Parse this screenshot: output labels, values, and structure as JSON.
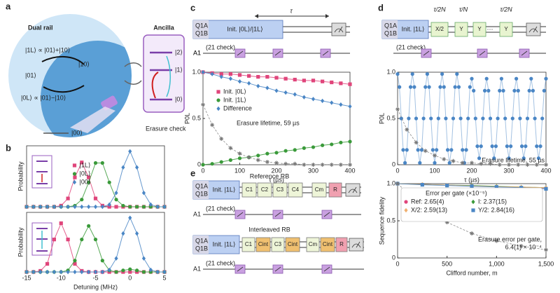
{
  "panel_labels": [
    "a",
    "b",
    "c",
    "d",
    "e"
  ],
  "panel_a": {
    "dual_rail": "Dual rail",
    "ancilla": "Ancilla",
    "state_1L": "|1L⟩ ∝ |01⟩+|10⟩",
    "state_10": "|10⟩",
    "state_01": "|01⟩",
    "state_0L": "|0L⟩ ∝ |01⟩−|10⟩",
    "anc_2": "|2⟩",
    "anc_1": "|1⟩",
    "anc_0": "|0⟩",
    "state_00": "|00⟩",
    "erasure_check": "Erasure check"
  },
  "circuit_c": {
    "q1a": "Q1A",
    "q1b": "Q1B",
    "a1": "A1",
    "init": "Init. |0L⟩/|1L⟩",
    "tau": "τ",
    "check": "(21 check)"
  },
  "circuit_d": {
    "q1a": "Q1A",
    "q1b": "Q1B",
    "a1": "A1",
    "init": "Init. |1L⟩",
    "gates": [
      "X/2",
      "Y",
      "Y",
      "Y"
    ],
    "timings": [
      "τ/2N",
      "τ/N",
      "τ/2N"
    ],
    "check": "(21 check)"
  },
  "circuit_e": {
    "q1a": "Q1A",
    "q1b": "Q1B",
    "a1": "A1",
    "reference": {
      "title": "Reference RB",
      "init": "Init. |1L⟩",
      "gates": [
        "C1",
        "C2",
        "C3",
        "C4",
        "Cm",
        "R"
      ],
      "check": "(21 check)"
    },
    "interleaved": {
      "title": "Interleaved RB",
      "init": "Init. |1L⟩",
      "gates": [
        "C1",
        "Cint",
        "C3",
        "Cint",
        "Cm",
        "Cint",
        "R"
      ],
      "check": "(21 check)"
    }
  },
  "chart_data": [
    {
      "type": "line",
      "ylabel": "Probability",
      "xlim": [
        -15,
        5
      ],
      "ylim": [
        0,
        1.1
      ],
      "legend": "upper center",
      "x": [
        -15,
        -14,
        -13,
        -12,
        -11,
        -10,
        -9,
        -8,
        -7,
        -6,
        -5,
        -4,
        -3,
        -2,
        -1,
        0,
        1,
        2,
        3,
        4,
        5
      ],
      "series": [
        {
          "name": "|1L⟩",
          "color": "#e0457b",
          "marker": "square",
          "values": [
            0,
            0,
            0,
            0,
            0,
            0.02,
            0.15,
            0.53,
            0.8,
            0.53,
            0.15,
            0.02,
            0,
            0,
            0,
            0,
            0,
            0,
            0,
            0,
            0
          ]
        },
        {
          "name": "|0L⟩",
          "color": "#3a9a3a",
          "marker": "circle",
          "values": [
            0,
            0,
            0,
            0,
            0,
            0,
            0,
            0.02,
            0.13,
            0.44,
            0.79,
            0.79,
            0.44,
            0.13,
            0.02,
            0,
            0,
            0,
            0,
            0,
            0
          ]
        },
        {
          "name": "|00⟩",
          "color": "#4a86c5",
          "marker": "diamond",
          "values": [
            0,
            0,
            0,
            0,
            0,
            0,
            0,
            0,
            0,
            0,
            0,
            0,
            0.04,
            0.25,
            0.71,
            1.0,
            0.71,
            0.25,
            0.04,
            0,
            0
          ]
        }
      ]
    },
    {
      "type": "line",
      "ylabel": "Probability",
      "xlabel": "Detuning (MHz)",
      "xlim": [
        -15,
        5
      ],
      "ylim": [
        0,
        1.1
      ],
      "xticks": [
        -15,
        -10,
        -5,
        0,
        5
      ],
      "x": [
        -15,
        -14,
        -13,
        -12,
        -11,
        -10,
        -9,
        -8,
        -7,
        -6,
        -5,
        -4,
        -3,
        -2,
        -1,
        0,
        1,
        2,
        3,
        4,
        5
      ],
      "series": [
        {
          "color": "#e0457b",
          "marker": "square",
          "values": [
            0,
            0,
            0.02,
            0.15,
            0.6,
            0.9,
            0.6,
            0.15,
            0.02,
            0,
            0,
            0,
            0,
            0,
            0,
            0,
            0,
            0,
            0,
            0,
            0
          ]
        },
        {
          "color": "#3a9a3a",
          "marker": "circle",
          "values": [
            0,
            0,
            0,
            0,
            0,
            0,
            0.03,
            0.21,
            0.6,
            0.85,
            0.6,
            0.21,
            0.03,
            0,
            0.03,
            0.05,
            0.03,
            0,
            0,
            0,
            0
          ]
        },
        {
          "color": "#4a86c5",
          "marker": "diamond",
          "values": [
            0,
            0,
            0,
            0,
            0,
            0,
            0,
            0,
            0,
            0,
            0,
            0,
            0.04,
            0.25,
            0.71,
            1.0,
            0.71,
            0.25,
            0.04,
            0,
            0
          ]
        }
      ]
    },
    {
      "type": "line",
      "ylabel": "P0L",
      "xlabel": "τ (µs)",
      "xlim": [
        0,
        400
      ],
      "ylim": [
        0,
        1
      ],
      "xticks": [
        0,
        100,
        200,
        300,
        400
      ],
      "yticks": [
        0,
        0.5,
        {
          "value": 1,
          "label": "1.0"
        }
      ],
      "legend": "center left",
      "x": [
        0,
        25,
        50,
        75,
        100,
        125,
        150,
        175,
        200,
        225,
        250,
        275,
        300,
        325,
        350,
        375,
        400
      ],
      "annotations": [
        "Erasure lifetime, 59 µs"
      ],
      "series": [
        {
          "name": "Init. |0L⟩",
          "color": "#e0457b",
          "marker": "square",
          "values": [
            1.0,
            0.99,
            0.98,
            0.98,
            0.97,
            0.96,
            0.95,
            0.95,
            0.94,
            0.93,
            0.92,
            0.91,
            0.91,
            0.9,
            0.89,
            0.88,
            0.87
          ]
        },
        {
          "name": "Init. |1L⟩",
          "color": "#3a9a3a",
          "marker": "circle",
          "values": [
            0,
            0.01,
            0.03,
            0.05,
            0.07,
            0.08,
            0.1,
            0.12,
            0.13,
            0.15,
            0.16,
            0.18,
            0.19,
            0.21,
            0.22,
            0.24,
            0.25
          ]
        },
        {
          "name": "Difference",
          "color": "#4a86c5",
          "marker": "diamond",
          "values": [
            1.0,
            0.98,
            0.95,
            0.93,
            0.9,
            0.88,
            0.85,
            0.83,
            0.8,
            0.78,
            0.76,
            0.73,
            0.71,
            0.69,
            0.67,
            0.65,
            0.63
          ]
        },
        {
          "color": "#777777",
          "marker": "star",
          "values": [
            0.65,
            0.43,
            0.28,
            0.18,
            0.12,
            0.08,
            0.05,
            0.03,
            0.02,
            0.01,
            0.01,
            0,
            0,
            0,
            0,
            0,
            0
          ]
        }
      ]
    },
    {
      "type": "line",
      "ylabel": "P0L",
      "xlabel": "τ (µs)",
      "xlim": [
        0,
        400
      ],
      "ylim": [
        0,
        1
      ],
      "xticks": [
        0,
        100,
        200,
        300,
        400
      ],
      "yticks": [
        0,
        0.5,
        {
          "value": 1,
          "label": "1.0"
        }
      ],
      "x": [
        0,
        5,
        10,
        15,
        20,
        25,
        30,
        35,
        40,
        45,
        50,
        55,
        60,
        65,
        70,
        75,
        80,
        85,
        90,
        95,
        100,
        105,
        110,
        115,
        120,
        125,
        130,
        135,
        140,
        145,
        150,
        155,
        160,
        165,
        170,
        175,
        180,
        185,
        190,
        195,
        200,
        205,
        210,
        215,
        220,
        225,
        230,
        235,
        240,
        245,
        250,
        255,
        260,
        265,
        270,
        275,
        280,
        285,
        290,
        295,
        300,
        305,
        310,
        315,
        320,
        325,
        330,
        335,
        340,
        345,
        350,
        355,
        360,
        365,
        370,
        375,
        380,
        385,
        390,
        395,
        400
      ],
      "annotations": [
        "Erasure lifetime, 55 µs"
      ],
      "series": [
        {
          "color": "#4a86c5",
          "marker": "circle",
          "values": [
            0.98,
            0.84,
            0.5,
            0.16,
            0.02,
            0.16,
            0.5,
            0.84,
            0.98,
            0.84,
            0.5,
            0.16,
            0.02,
            0.16,
            0.5,
            0.84,
            0.98,
            0.84,
            0.5,
            0.16,
            0.02,
            0.16,
            0.5,
            0.84,
            0.98,
            0.84,
            0.5,
            0.16,
            0.02,
            0.16,
            0.5,
            0.84,
            0.98,
            0.84,
            0.5,
            0.16,
            0.02,
            0.16,
            0.5,
            0.84,
            0.93,
            0.8,
            0.5,
            0.2,
            0.07,
            0.2,
            0.5,
            0.8,
            0.93,
            0.8,
            0.5,
            0.2,
            0.07,
            0.2,
            0.5,
            0.8,
            0.93,
            0.8,
            0.5,
            0.2,
            0.07,
            0.2,
            0.5,
            0.8,
            0.93,
            0.8,
            0.5,
            0.2,
            0.07,
            0.2,
            0.5,
            0.8,
            0.93,
            0.8,
            0.5,
            0.2,
            0.07,
            0.2,
            0.5,
            0.8,
            0.93
          ]
        },
        {
          "color": "#777777",
          "marker": "star",
          "x": [
            0,
            25,
            50,
            75,
            100,
            125,
            150,
            175,
            200,
            225,
            250,
            275,
            300,
            325,
            350,
            375,
            400
          ],
          "values": [
            0.6,
            0.38,
            0.24,
            0.15,
            0.1,
            0.06,
            0.04,
            0.02,
            0.02,
            0.01,
            0.01,
            0,
            0,
            0,
            0,
            0,
            0
          ]
        }
      ]
    },
    {
      "type": "line",
      "ylabel": "Sequence fidelity",
      "xlabel": "Clifford number, m",
      "xlim": [
        0,
        1500
      ],
      "ylim": [
        0,
        1
      ],
      "xticks": [
        0,
        500,
        {
          "value": 1000,
          "label": "1,000"
        },
        {
          "value": 1500,
          "label": "1,500"
        }
      ],
      "yticks": [
        0,
        0.5,
        {
          "value": 1,
          "label": "1.0"
        }
      ],
      "legend": "upper center",
      "legend_title": "Error per gate (×10⁻⁵)",
      "x": [
        0,
        250,
        500,
        750,
        1000,
        1250,
        1500
      ],
      "annotations": [
        "Erasure error per gate,",
        "6.4(1) × 10⁻⁴"
      ],
      "series": [
        {
          "name": "Ref: 2.65(4)",
          "color": "#e0457b",
          "marker": "circle",
          "values": [
            1.0,
            0.99,
            0.98,
            0.97,
            0.96,
            0.95,
            0.94
          ]
        },
        {
          "name": "I: 2.37(15)",
          "color": "#3a9a3a",
          "marker": "diamond",
          "values": [
            1.0,
            0.99,
            0.98,
            0.975,
            0.965,
            0.955,
            0.945
          ]
        },
        {
          "name": "X/2: 2.59(13)",
          "color": "#f0b070",
          "marker": "diamond",
          "values": [
            1.0,
            0.99,
            0.98,
            0.97,
            0.96,
            0.955,
            0.945
          ]
        },
        {
          "name": "Y/2: 2.84(16)",
          "color": "#4a86c5",
          "marker": "square",
          "values": [
            1.0,
            0.985,
            0.975,
            0.965,
            0.955,
            0.945,
            0.93
          ]
        },
        {
          "color": "#777777",
          "marker": "star",
          "values": [
            1.0,
            0.69,
            0.48,
            0.33,
            0.23,
            0.16,
            0.11
          ]
        }
      ]
    }
  ]
}
